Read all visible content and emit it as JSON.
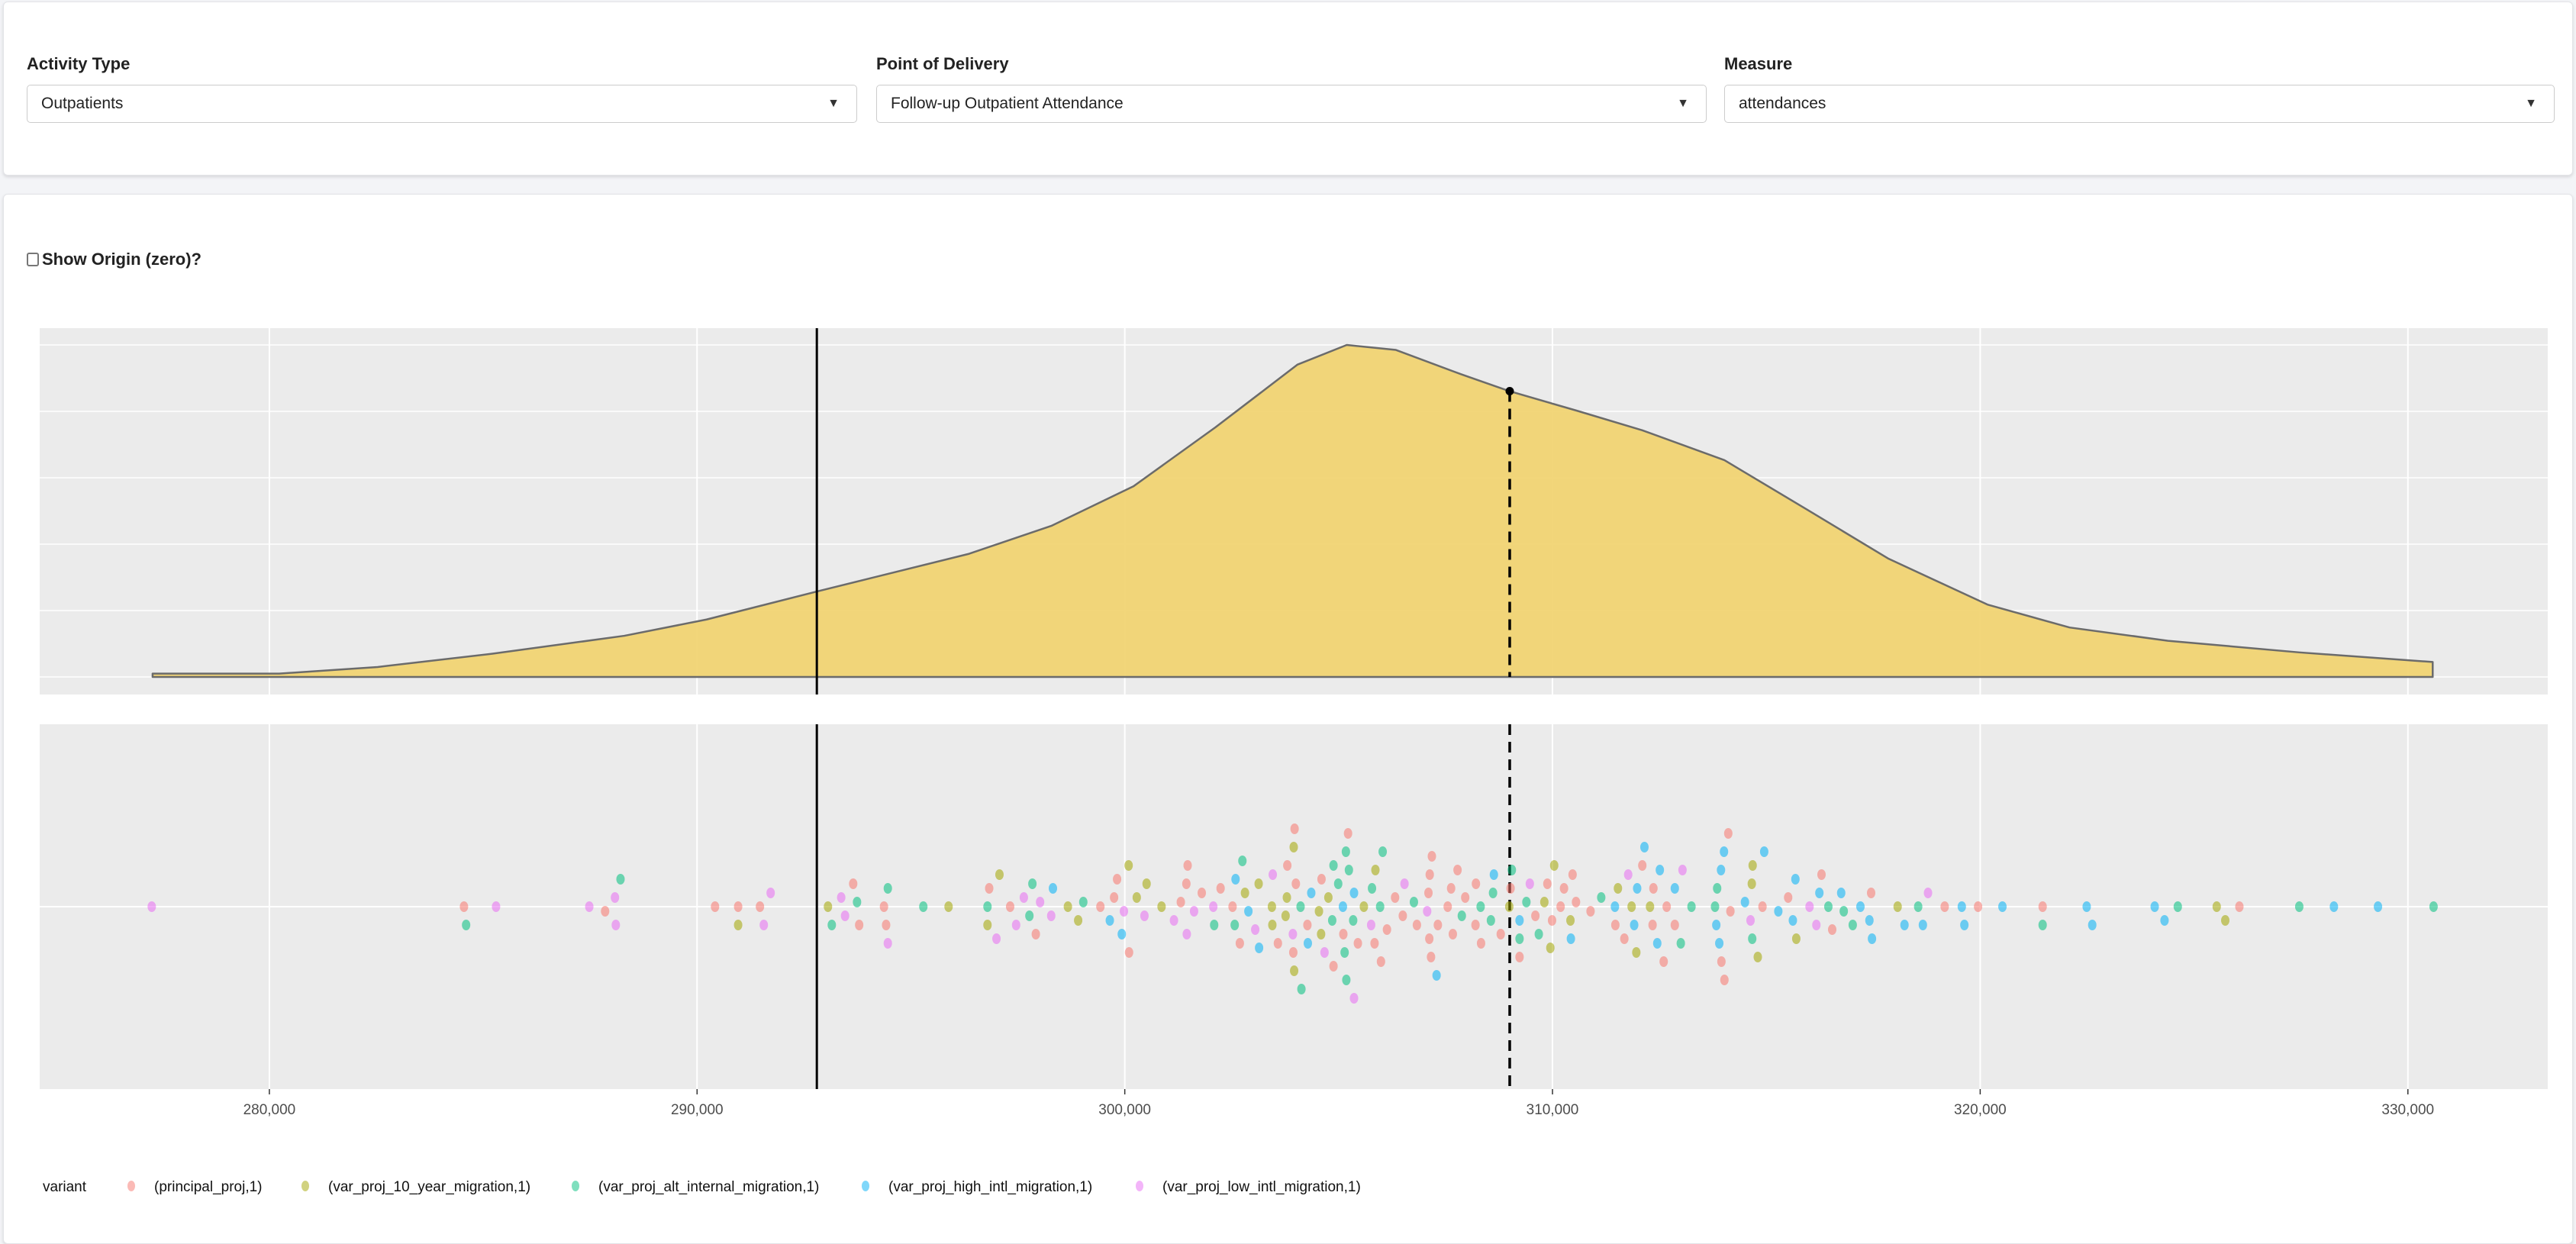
{
  "filters": [
    {
      "label": "Activity Type",
      "value": "Outpatients"
    },
    {
      "label": "Point of Delivery",
      "value": "Follow-up Outpatient Attendance"
    },
    {
      "label": "Measure",
      "value": "attendances"
    }
  ],
  "show_origin": {
    "label": "Show Origin (zero)?",
    "checked": false
  },
  "chart_data": {
    "type": "density+beeswarm",
    "xlim": [
      274630,
      333270
    ],
    "x_ticks": [
      280000,
      290000,
      300000,
      310000,
      320000,
      330000
    ],
    "x_tick_labels": [
      "280,000",
      "290,000",
      "300,000",
      "310,000",
      "320,000",
      "330,000"
    ],
    "reference_lines": {
      "solid": 292800,
      "dashed": 309000
    },
    "grid": true,
    "density": {
      "fill": "#f1d473",
      "x": [
        277270,
        280230,
        282530,
        285220,
        288300,
        290220,
        292790,
        296360,
        298280,
        300200,
        302120,
        304040,
        305190,
        306340,
        307880,
        308990,
        310570,
        312100,
        314020,
        315940,
        317860,
        320170,
        322090,
        324390,
        327460,
        330580
      ],
      "y": [
        0.01,
        0.01,
        0.03,
        0.07,
        0.124,
        0.173,
        0.257,
        0.371,
        0.455,
        0.574,
        0.752,
        0.941,
        1.0,
        0.985,
        0.911,
        0.861,
        0.802,
        0.743,
        0.653,
        0.505,
        0.356,
        0.218,
        0.149,
        0.109,
        0.074,
        0.045
      ],
      "marker": {
        "x": 309000,
        "y": 0.861
      }
    },
    "legend": {
      "title": "variant",
      "placement": "bottom",
      "entries": [
        {
          "name": "(principal_proj,1)",
          "color": "#f8766d"
        },
        {
          "name": "(var_proj_10_year_migration,1)",
          "color": "#a3a500"
        },
        {
          "name": "(var_proj_alt_internal_migration,1)",
          "color": "#00bf7d"
        },
        {
          "name": "(var_proj_high_intl_migration,1)",
          "color": "#00b0f6"
        },
        {
          "name": "(var_proj_low_intl_migration,1)",
          "color": "#e76bf3"
        }
      ]
    },
    "points": [
      [
        277250,
        4
      ],
      [
        284600,
        2
      ],
      [
        284550,
        0
      ],
      [
        285300,
        4
      ],
      [
        287480,
        4
      ],
      [
        288080,
        4
      ],
      [
        287850,
        0
      ],
      [
        288210,
        2
      ],
      [
        288100,
        4
      ],
      [
        290420,
        0
      ],
      [
        290960,
        0
      ],
      [
        290960,
        1
      ],
      [
        291470,
        0
      ],
      [
        291560,
        4
      ],
      [
        291720,
        4
      ],
      [
        293150,
        2
      ],
      [
        293060,
        1
      ],
      [
        293460,
        4
      ],
      [
        293370,
        4
      ],
      [
        293790,
        0
      ],
      [
        293650,
        0
      ],
      [
        293740,
        2
      ],
      [
        294420,
        0
      ],
      [
        294370,
        0
      ],
      [
        294460,
        2
      ],
      [
        294460,
        4
      ],
      [
        295290,
        2
      ],
      [
        295880,
        1
      ],
      [
        296790,
        2
      ],
      [
        296790,
        1
      ],
      [
        297000,
        4
      ],
      [
        297320,
        0
      ],
      [
        297640,
        4
      ],
      [
        297840,
        2
      ],
      [
        297770,
        2
      ],
      [
        298020,
        4
      ],
      [
        298320,
        3
      ],
      [
        297070,
        1
      ],
      [
        296830,
        0
      ],
      [
        297460,
        4
      ],
      [
        297920,
        0
      ],
      [
        298280,
        4
      ],
      [
        298910,
        1
      ],
      [
        298670,
        1
      ],
      [
        299030,
        2
      ],
      [
        299430,
        0
      ],
      [
        299750,
        0
      ],
      [
        299930,
        3
      ],
      [
        300090,
        1
      ],
      [
        300100,
        0
      ],
      [
        300280,
        1
      ],
      [
        299820,
        0
      ],
      [
        299980,
        4
      ],
      [
        299650,
        3
      ],
      [
        300460,
        4
      ],
      [
        300510,
        1
      ],
      [
        300860,
        1
      ],
      [
        301150,
        4
      ],
      [
        301310,
        0
      ],
      [
        301440,
        0
      ],
      [
        301450,
        4
      ],
      [
        301470,
        0
      ],
      [
        301620,
        4
      ],
      [
        301800,
        0
      ],
      [
        302090,
        2
      ],
      [
        302070,
        4
      ],
      [
        302240,
        0
      ],
      [
        302520,
        0
      ],
      [
        302570,
        2
      ],
      [
        302590,
        3
      ],
      [
        302690,
        0
      ],
      [
        302750,
        2
      ],
      [
        302810,
        1
      ],
      [
        302890,
        3
      ],
      [
        303050,
        4
      ],
      [
        303130,
        1
      ],
      [
        303140,
        3
      ],
      [
        303440,
        1
      ],
      [
        303460,
        4
      ],
      [
        303450,
        1
      ],
      [
        303580,
        0
      ],
      [
        303760,
        1
      ],
      [
        303790,
        1
      ],
      [
        303800,
        0
      ],
      [
        303930,
        4
      ],
      [
        303940,
        0
      ],
      [
        303950,
        1
      ],
      [
        303960,
        1
      ],
      [
        303970,
        0
      ],
      [
        304000,
        0
      ],
      [
        304110,
        2
      ],
      [
        304130,
        2
      ],
      [
        304270,
        0
      ],
      [
        304280,
        3
      ],
      [
        304360,
        3
      ],
      [
        304540,
        1
      ],
      [
        304600,
        0
      ],
      [
        304590,
        1
      ],
      [
        304670,
        4
      ],
      [
        304760,
        1
      ],
      [
        304850,
        2
      ],
      [
        304880,
        2
      ],
      [
        304880,
        0
      ],
      [
        304990,
        2
      ],
      [
        305100,
        3
      ],
      [
        305110,
        0
      ],
      [
        305140,
        2
      ],
      [
        305170,
        2
      ],
      [
        305180,
        2
      ],
      [
        305220,
        0
      ],
      [
        305240,
        2
      ],
      [
        305340,
        2
      ],
      [
        305360,
        3
      ],
      [
        305360,
        4
      ],
      [
        305450,
        0
      ],
      [
        305590,
        1
      ],
      [
        305760,
        4
      ],
      [
        305780,
        2
      ],
      [
        305840,
        0
      ],
      [
        305860,
        1
      ],
      [
        305970,
        2
      ],
      [
        305990,
        0
      ],
      [
        306030,
        2
      ],
      [
        306130,
        0
      ],
      [
        306320,
        0
      ],
      [
        306500,
        0
      ],
      [
        306540,
        4
      ],
      [
        306760,
        2
      ],
      [
        306830,
        0
      ],
      [
        307070,
        4
      ],
      [
        307100,
        0
      ],
      [
        307120,
        0
      ],
      [
        307130,
        0
      ],
      [
        307160,
        0
      ],
      [
        307180,
        0
      ],
      [
        307290,
        3
      ],
      [
        307320,
        0
      ],
      [
        307550,
        0
      ],
      [
        307630,
        0
      ],
      [
        307670,
        0
      ],
      [
        307780,
        0
      ],
      [
        307880,
        2
      ],
      [
        307960,
        0
      ],
      [
        308200,
        0
      ],
      [
        308210,
        0
      ],
      [
        308320,
        2
      ],
      [
        308330,
        0
      ],
      [
        308560,
        2
      ],
      [
        308610,
        2
      ],
      [
        308630,
        3
      ],
      [
        308790,
        0
      ],
      [
        308990,
        1
      ],
      [
        309020,
        0
      ],
      [
        309050,
        2
      ],
      [
        309230,
        3
      ],
      [
        309230,
        2
      ],
      [
        309230,
        0
      ],
      [
        309390,
        2
      ],
      [
        309470,
        4
      ],
      [
        309600,
        0
      ],
      [
        309680,
        2
      ],
      [
        309810,
        1
      ],
      [
        309880,
        0
      ],
      [
        309950,
        1
      ],
      [
        309990,
        0
      ],
      [
        310040,
        1
      ],
      [
        310190,
        0
      ],
      [
        310270,
        0
      ],
      [
        310420,
        1
      ],
      [
        310430,
        3
      ],
      [
        310470,
        0
      ],
      [
        310550,
        0
      ],
      [
        310890,
        0
      ],
      [
        311140,
        2
      ],
      [
        311460,
        3
      ],
      [
        311470,
        0
      ],
      [
        311530,
        1
      ],
      [
        311680,
        0
      ],
      [
        311770,
        4
      ],
      [
        311850,
        1
      ],
      [
        311910,
        3
      ],
      [
        311960,
        1
      ],
      [
        311980,
        3
      ],
      [
        312100,
        0
      ],
      [
        312150,
        3
      ],
      [
        312280,
        1
      ],
      [
        312340,
        0
      ],
      [
        312360,
        0
      ],
      [
        312450,
        3
      ],
      [
        312510,
        3
      ],
      [
        312600,
        0
      ],
      [
        312670,
        0
      ],
      [
        312860,
        0
      ],
      [
        312860,
        3
      ],
      [
        313000,
        2
      ],
      [
        313040,
        4
      ],
      [
        313250,
        2
      ],
      [
        313800,
        2
      ],
      [
        313830,
        3
      ],
      [
        313850,
        2
      ],
      [
        314500,
        3
      ],
      [
        314010,
        3
      ],
      [
        313940,
        3
      ],
      [
        314110,
        0
      ],
      [
        314160,
        0
      ],
      [
        313950,
        0
      ],
      [
        314020,
        0
      ],
      [
        313900,
        3
      ],
      [
        314680,
        1
      ],
      [
        314660,
        1
      ],
      [
        314910,
        0
      ],
      [
        314950,
        3
      ],
      [
        314670,
        2
      ],
      [
        314800,
        1
      ],
      [
        314630,
        4
      ],
      [
        315280,
        3
      ],
      [
        315620,
        3
      ],
      [
        315680,
        3
      ],
      [
        315510,
        0
      ],
      [
        315700,
        1
      ],
      [
        316010,
        4
      ],
      [
        316170,
        4
      ],
      [
        316240,
        3
      ],
      [
        316290,
        0
      ],
      [
        316450,
        2
      ],
      [
        316540,
        0
      ],
      [
        316750,
        3
      ],
      [
        316810,
        2
      ],
      [
        317020,
        2
      ],
      [
        317200,
        3
      ],
      [
        317410,
        3
      ],
      [
        317450,
        0
      ],
      [
        317470,
        3
      ],
      [
        318070,
        1
      ],
      [
        318230,
        3
      ],
      [
        318550,
        2
      ],
      [
        318660,
        3
      ],
      [
        318780,
        4
      ],
      [
        319170,
        0
      ],
      [
        319570,
        3
      ],
      [
        319630,
        3
      ],
      [
        319950,
        0
      ],
      [
        320520,
        3
      ],
      [
        321460,
        0
      ],
      [
        321460,
        2
      ],
      [
        322490,
        3
      ],
      [
        322620,
        3
      ],
      [
        324080,
        3
      ],
      [
        324310,
        3
      ],
      [
        324620,
        2
      ],
      [
        325530,
        1
      ],
      [
        325730,
        1
      ],
      [
        326060,
        0
      ],
      [
        327460,
        2
      ],
      [
        328270,
        3
      ],
      [
        329300,
        3
      ],
      [
        330600,
        2
      ]
    ]
  }
}
